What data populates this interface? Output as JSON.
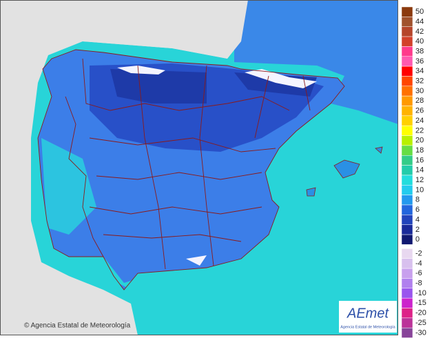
{
  "legend": {
    "levels": [
      {
        "label": 50,
        "color": "#8b3a0e"
      },
      {
        "label": 44,
        "color": "#a0522d"
      },
      {
        "label": 42,
        "color": "#b5452a"
      },
      {
        "label": 40,
        "color": "#d2402a"
      },
      {
        "label": 38,
        "color": "#ff3a8c"
      },
      {
        "label": 36,
        "color": "#ff59b0"
      },
      {
        "label": 34,
        "color": "#ff0000"
      },
      {
        "label": 32,
        "color": "#ff4500"
      },
      {
        "label": 30,
        "color": "#ff7000"
      },
      {
        "label": 28,
        "color": "#ff9900"
      },
      {
        "label": 26,
        "color": "#ffb300"
      },
      {
        "label": 24,
        "color": "#ffd000"
      },
      {
        "label": 22,
        "color": "#ffff00"
      },
      {
        "label": 20,
        "color": "#b8f000"
      },
      {
        "label": 18,
        "color": "#66dd44"
      },
      {
        "label": 16,
        "color": "#33cc88"
      },
      {
        "label": 14,
        "color": "#22ccaa"
      },
      {
        "label": 12,
        "color": "#22dddd"
      },
      {
        "label": 10,
        "color": "#22ccee"
      },
      {
        "label": 8,
        "color": "#2299ee"
      },
      {
        "label": 6,
        "color": "#2266dd"
      },
      {
        "label": 4,
        "color": "#2244bb"
      },
      {
        "label": 2,
        "color": "#1a2a99"
      },
      {
        "label": 0,
        "color": "#101870"
      },
      {
        "label": -2,
        "color": "#e8d8f0"
      },
      {
        "label": -4,
        "color": "#d8c0ee"
      },
      {
        "label": -6,
        "color": "#c8a0ee"
      },
      {
        "label": -8,
        "color": "#b080ee"
      },
      {
        "label": -10,
        "color": "#9955ee"
      },
      {
        "label": -15,
        "color": "#cc22cc"
      },
      {
        "label": -20,
        "color": "#dd2288"
      },
      {
        "label": -25,
        "color": "#bb3399"
      },
      {
        "label": -30,
        "color": "#884499"
      }
    ]
  },
  "credit": "© Agencia Estatal de Meteorología",
  "logo": {
    "name": "AEmet",
    "subtitle": "Agencia Estatal de Meteorología"
  }
}
